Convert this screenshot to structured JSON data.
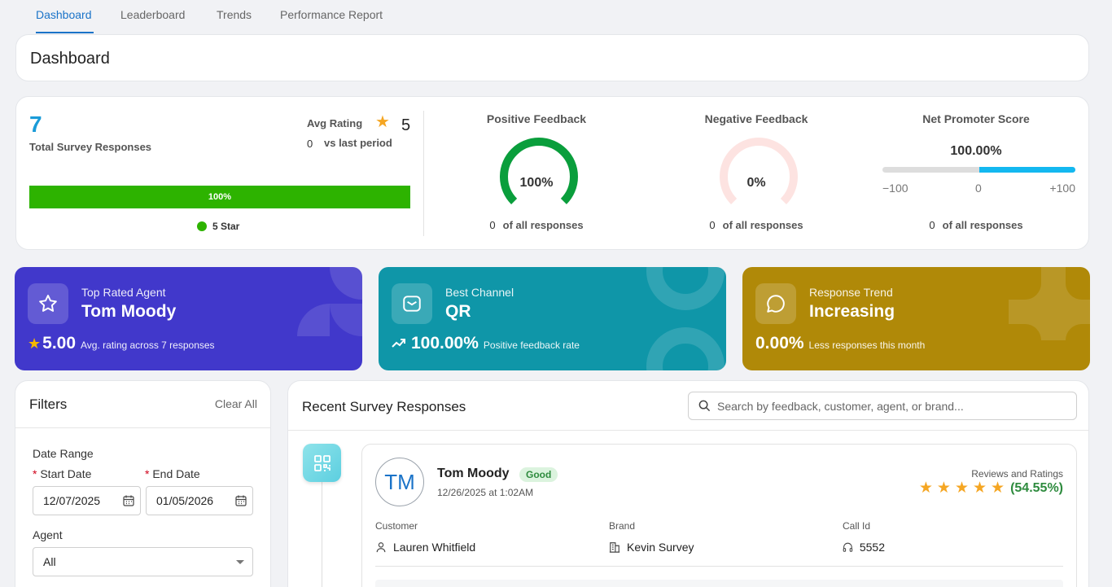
{
  "tabs": [
    {
      "label": "Dashboard",
      "active": true
    },
    {
      "label": "Leaderboard"
    },
    {
      "label": "Trends"
    },
    {
      "label": "Performance Report"
    }
  ],
  "page_title": "Dashboard",
  "summary": {
    "total_responses": "7",
    "total_label": "Total Survey Responses",
    "avg_label": "Avg Rating",
    "avg_value": "5",
    "vs_num": "0",
    "vs_label": "vs last period",
    "bar_percent": 100,
    "bar_label": "100%",
    "legend_label": "5 Star",
    "legend_color": "#2db300"
  },
  "metrics": {
    "positive": {
      "title": "Positive Feedback",
      "value": "100%",
      "fraction": 1.0,
      "count": "0",
      "foot": "of all responses",
      "color": "#0a9e3c"
    },
    "negative": {
      "title": "Negative Feedback",
      "value": "0%",
      "fraction": 0.0,
      "count": "0",
      "foot": "of all responses",
      "color": "#fde3e1"
    },
    "nps": {
      "title": "Net Promoter Score",
      "value": "100.00%",
      "score": 100,
      "min_label": "−100",
      "mid_label": "0",
      "max_label": "+100",
      "count": "0",
      "foot": "of all responses",
      "color": "#13b8f0"
    }
  },
  "highlights": [
    {
      "label": "Top Rated Agent",
      "value": "Tom Moody",
      "big": "5.00",
      "small": "Avg. rating across 7 responses",
      "icon": "star-icon",
      "bg": "#4138cb"
    },
    {
      "label": "Best Channel",
      "value": "QR",
      "big": "100.00%",
      "small": "Positive feedback rate",
      "icon": "mail-icon",
      "bg": "#0f96a8"
    },
    {
      "label": "Response Trend",
      "value": "Increasing",
      "big": "0.00%",
      "small": "Less responses this month",
      "icon": "chat-bubble-icon",
      "bg": "#b08908"
    }
  ],
  "filters": {
    "title": "Filters",
    "clear_label": "Clear All",
    "date_range_label": "Date Range",
    "start_label": "Start Date",
    "end_label": "End Date",
    "start_value": "12/07/2025",
    "end_value": "01/05/2026",
    "agent_label": "Agent",
    "agent_value": "All"
  },
  "responses": {
    "title": "Recent Survey Responses",
    "search_placeholder": "Search by feedback, customer, agent, or brand...",
    "items": [
      {
        "initials": "TM",
        "agent": "Tom Moody",
        "badge": "Good",
        "time": "12/26/2025 at 1:02AM",
        "rr_label": "Reviews and Ratings",
        "stars": 5,
        "rr_pct": "(54.55%)",
        "customer_label": "Customer",
        "customer": "Lauren Whitfield",
        "brand_label": "Brand",
        "brand": "Kevin Survey",
        "callid_label": "Call Id",
        "callid": "5552"
      }
    ]
  }
}
